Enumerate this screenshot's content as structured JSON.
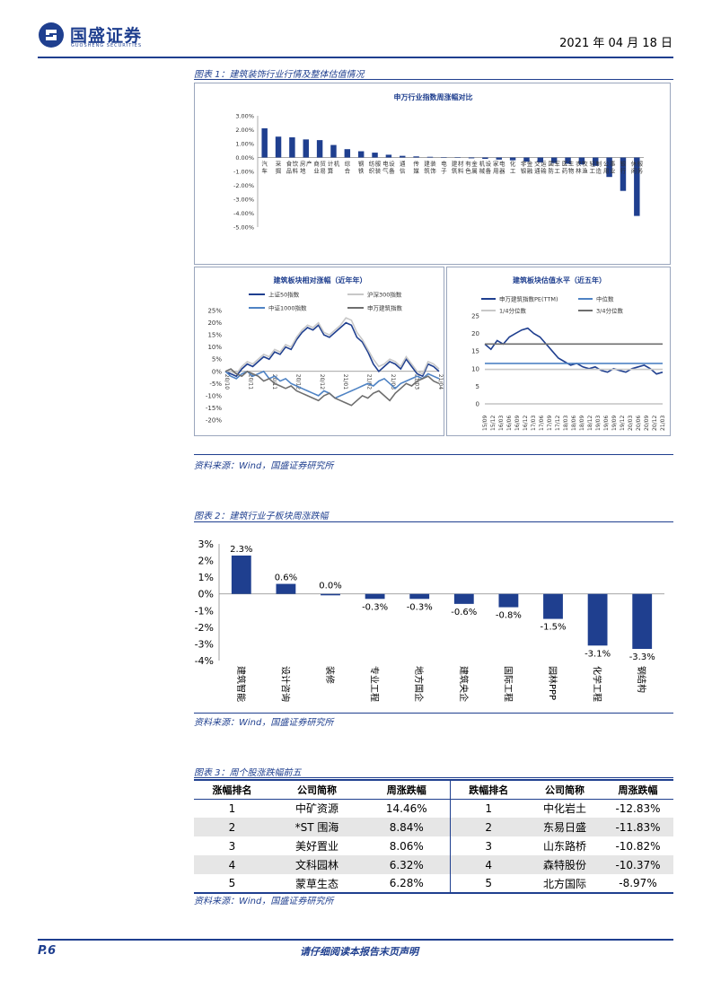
{
  "header": {
    "company_cn": "国盛证券",
    "company_en": "GUOSHENG SECURITIES",
    "date": "2021 年 04 月 18 日"
  },
  "fig1": {
    "caption": "图表 1：建筑装饰行业行情及整体估值情况",
    "source": "资料来源：Wind，国盛证券研究所",
    "top": {
      "title": "申万行业指数周涨幅对比",
      "chart_data": {
        "type": "bar",
        "ylim": [
          -5,
          3
        ],
        "yticks": [
          "3.00%",
          "2.00%",
          "1.00%",
          "0.00%",
          "-1.00%",
          "-2.00%",
          "-3.00%",
          "-4.00%",
          "-5.00%"
        ],
        "categories": [
          "汽车",
          "采掘",
          "食品饮料",
          "房地产",
          "商业贸易",
          "计算机",
          "综合",
          "钢铁",
          "纺织服装",
          "电气设备",
          "通信",
          "传媒",
          "建筑装饰",
          "电子",
          "建筑材料",
          "有色金属",
          "机械设备",
          "家用电器",
          "化工",
          "非银金融",
          "交通运输",
          "国防军工",
          "医药生物",
          "农林牧渔",
          "轻工制造",
          "公用事业",
          "银行",
          "休闲服务"
        ],
        "values": [
          2.1,
          1.5,
          1.45,
          1.3,
          1.25,
          0.9,
          0.6,
          0.45,
          0.35,
          0.2,
          0.12,
          0.08,
          0.05,
          0.02,
          -0.03,
          -0.06,
          -0.1,
          -0.15,
          -0.2,
          -0.3,
          -0.35,
          -0.4,
          -0.45,
          -0.5,
          -0.6,
          -1.4,
          -2.4,
          -4.2
        ],
        "color": "#1f3f8f"
      }
    },
    "left": {
      "title": "建筑板块相对涨幅（近年年）",
      "chart_data": {
        "type": "line",
        "ylim": [
          -20,
          25
        ],
        "yticks": [
          "25%",
          "20%",
          "15%",
          "10%",
          "5%",
          "0%",
          "-5%",
          "-10%",
          "-15%",
          "-20%"
        ],
        "xticks": [
          "20/10",
          "20/11",
          "20/11",
          "20/12",
          "20/12",
          "21/01",
          "21/02",
          "21/03",
          "21/03",
          "21/04"
        ],
        "series": [
          {
            "name": "上证50指数",
            "color": "#1f3f8f",
            "values": [
              0,
              -1,
              -2,
              1,
              3,
              2,
              4,
              6,
              5,
              8,
              7,
              10,
              9,
              13,
              16,
              18,
              17,
              19,
              15,
              14,
              16,
              18,
              20,
              19,
              14,
              12,
              8,
              3,
              0,
              2,
              4,
              3,
              1,
              5,
              2,
              -1,
              -2,
              3,
              2,
              0
            ]
          },
          {
            "name": "沪深300指数",
            "color": "#c8c8c8",
            "values": [
              0,
              0,
              -1,
              2,
              4,
              3,
              5,
              7,
              6,
              9,
              8,
              11,
              10,
              14,
              17,
              19,
              18,
              20,
              16,
              15,
              17,
              19,
              22,
              21,
              16,
              13,
              9,
              5,
              2,
              3,
              5,
              4,
              2,
              6,
              3,
              0,
              -1,
              4,
              3,
              1
            ]
          },
          {
            "name": "中证1000指数",
            "color": "#4f83c4",
            "values": [
              0,
              -2,
              -3,
              -1,
              0,
              -2,
              -1,
              0,
              -3,
              -2,
              -4,
              -3,
              -5,
              -6,
              -7,
              -8,
              -9,
              -10,
              -8,
              -9,
              -11,
              -10,
              -9,
              -8,
              -7,
              -6,
              -5,
              -6,
              -4,
              -3,
              -5,
              -7,
              -5,
              -4,
              -3,
              -2,
              -3,
              -1,
              -2,
              -3
            ]
          },
          {
            "name": "申万建筑指数",
            "color": "#6e6e6e",
            "values": [
              0,
              1,
              -1,
              -2,
              0,
              -1,
              -2,
              -4,
              -3,
              -5,
              -6,
              -7,
              -6,
              -8,
              -9,
              -10,
              -11,
              -12,
              -10,
              -9,
              -11,
              -12,
              -13,
              -14,
              -12,
              -10,
              -11,
              -9,
              -8,
              -10,
              -12,
              -9,
              -7,
              -5,
              -6,
              -4,
              -3,
              -2,
              -4,
              -5
            ]
          }
        ]
      }
    },
    "right": {
      "title": "建筑板块估值水平（近五年）",
      "chart_data": {
        "type": "line",
        "ylim": [
          0,
          25
        ],
        "yticks": [
          "25",
          "20",
          "15",
          "10",
          "5",
          "0"
        ],
        "xticks": [
          "15/09",
          "15/12",
          "16/03",
          "16/06",
          "16/09",
          "16/12",
          "17/03",
          "17/06",
          "17/09",
          "17/12",
          "18/03",
          "18/06",
          "18/09",
          "18/12",
          "19/03",
          "19/06",
          "19/09",
          "19/12",
          "20/03",
          "20/06",
          "20/09",
          "20/12",
          "21/03"
        ],
        "series": [
          {
            "name": "申万建筑指数PE(TTM)",
            "color": "#1f3f8f",
            "values": [
              17,
              15.5,
              18,
              17,
              19,
              20,
              21,
              21.5,
              20,
              19,
              17,
              15,
              13,
              12,
              11,
              11.5,
              10.5,
              10,
              10.5,
              9.5,
              9,
              10,
              9.5,
              9,
              10,
              10.5,
              11,
              10,
              8.5,
              9
            ]
          },
          {
            "name": "中位数",
            "color": "#4f83c4",
            "values": [
              11.5
            ]
          },
          {
            "name": "1/4分位数",
            "color": "#c8c8c8",
            "values": [
              9.8
            ]
          },
          {
            "name": "3/4分位数",
            "color": "#6e6e6e",
            "values": [
              17
            ]
          }
        ]
      }
    }
  },
  "fig2": {
    "caption": "图表 2：建筑行业子板块周涨跌幅",
    "source": "资料来源：Wind，国盛证券研究所",
    "chart_data": {
      "type": "bar",
      "ylim": [
        -4,
        3
      ],
      "yticks": [
        "3%",
        "2%",
        "1%",
        "0%",
        "-1%",
        "-2%",
        "-3%",
        "-4%"
      ],
      "categories": [
        "建筑智能",
        "设计咨询",
        "装修",
        "专业工程",
        "地方国企",
        "建筑央企",
        "国际工程",
        "园林PPP",
        "化学工程",
        "钢结构"
      ],
      "values": [
        2.3,
        0.6,
        0.0,
        -0.3,
        -0.3,
        -0.6,
        -0.8,
        -1.5,
        -3.1,
        -3.3
      ],
      "labels": [
        "2.3%",
        "0.6%",
        "0.0%",
        "-0.3%",
        "-0.3%",
        "-0.6%",
        "-0.8%",
        "-1.5%",
        "-3.1%",
        "-3.3%"
      ],
      "color": "#1f3f8f"
    }
  },
  "fig3": {
    "caption": "图表 3：周个股涨跌幅前五",
    "source": "资料来源：Wind，国盛证券研究所",
    "headers": [
      "涨幅排名",
      "公司简称",
      "周涨跌幅",
      "跌幅排名",
      "公司简称",
      "周涨跌幅"
    ],
    "rows": [
      [
        "1",
        "中矿资源",
        "14.46%",
        "1",
        "中化岩土",
        "-12.83%"
      ],
      [
        "2",
        "*ST 围海",
        "8.84%",
        "2",
        "东易日盛",
        "-11.83%"
      ],
      [
        "3",
        "美好置业",
        "8.06%",
        "3",
        "山东路桥",
        "-10.82%"
      ],
      [
        "4",
        "文科园林",
        "6.32%",
        "4",
        "森特股份",
        "-10.37%"
      ],
      [
        "5",
        "蒙草生态",
        "6.28%",
        "5",
        "北方国际",
        "-8.97%"
      ]
    ]
  },
  "footer": {
    "page": "P.6",
    "disclaimer": "请仔细阅读本报告末页声明"
  }
}
